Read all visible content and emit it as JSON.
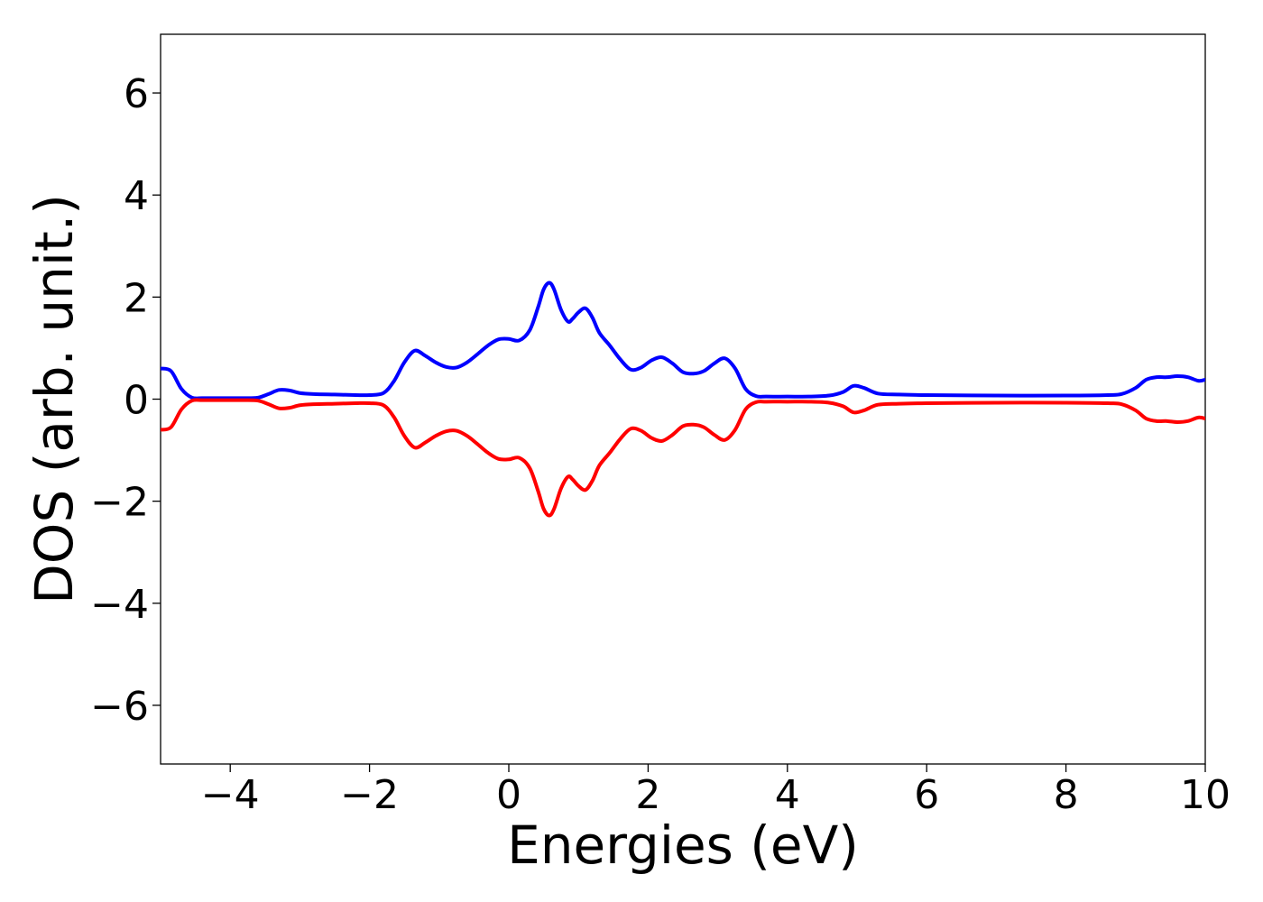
{
  "chart_data": {
    "type": "line",
    "title": "",
    "xlabel": "Energies (eV)",
    "ylabel": "DOS (arb. unit.)",
    "xlim": [
      -5,
      10
    ],
    "ylim": [
      -7.15,
      7.15
    ],
    "grid": false,
    "legend": "none",
    "x_ticks": [
      -4,
      -2,
      0,
      2,
      4,
      6,
      8,
      10
    ],
    "x_tick_labels": [
      "−4",
      "−2",
      "0",
      "2",
      "4",
      "6",
      "8",
      "10"
    ],
    "y_ticks": [
      6,
      4,
      2,
      0,
      -2,
      -4,
      -6
    ],
    "y_tick_labels": [
      "6",
      "4",
      "2",
      "0",
      "−2",
      "−4",
      "−6"
    ],
    "series": [
      {
        "color": "#0000ff",
        "x": [
          -5.0,
          -4.85,
          -4.7,
          -4.55,
          -4.4,
          -4.2,
          -4.0,
          -3.8,
          -3.6,
          -3.45,
          -3.3,
          -3.15,
          -3.0,
          -2.8,
          -2.5,
          -2.2,
          -2.0,
          -1.8,
          -1.65,
          -1.5,
          -1.35,
          -1.2,
          -1.05,
          -0.9,
          -0.75,
          -0.6,
          -0.45,
          -0.3,
          -0.15,
          0.0,
          0.15,
          0.3,
          0.42,
          0.5,
          0.58,
          0.65,
          0.75,
          0.85,
          0.92,
          1.0,
          1.1,
          1.2,
          1.3,
          1.45,
          1.6,
          1.75,
          1.9,
          2.05,
          2.2,
          2.35,
          2.5,
          2.65,
          2.8,
          2.95,
          3.1,
          3.25,
          3.4,
          3.55,
          3.7,
          4.0,
          4.3,
          4.6,
          4.8,
          4.95,
          5.1,
          5.3,
          5.6,
          6.0,
          7.0,
          8.0,
          8.6,
          8.8,
          9.0,
          9.15,
          9.3,
          9.45,
          9.6,
          9.75,
          9.9,
          10.0
        ],
        "y": [
          0.6,
          0.55,
          0.2,
          0.03,
          0.02,
          0.02,
          0.02,
          0.02,
          0.03,
          0.1,
          0.18,
          0.17,
          0.12,
          0.1,
          0.09,
          0.08,
          0.08,
          0.12,
          0.35,
          0.72,
          0.95,
          0.85,
          0.72,
          0.63,
          0.62,
          0.72,
          0.88,
          1.05,
          1.17,
          1.18,
          1.15,
          1.35,
          1.8,
          2.15,
          2.28,
          2.15,
          1.75,
          1.52,
          1.58,
          1.7,
          1.78,
          1.6,
          1.3,
          1.05,
          0.78,
          0.58,
          0.62,
          0.76,
          0.82,
          0.7,
          0.53,
          0.5,
          0.55,
          0.7,
          0.8,
          0.6,
          0.2,
          0.06,
          0.05,
          0.05,
          0.05,
          0.07,
          0.14,
          0.26,
          0.22,
          0.11,
          0.09,
          0.08,
          0.07,
          0.07,
          0.08,
          0.1,
          0.22,
          0.38,
          0.43,
          0.43,
          0.45,
          0.43,
          0.36,
          0.38
        ]
      },
      {
        "color": "#ff0000",
        "x": [
          -5.0,
          -4.85,
          -4.7,
          -4.55,
          -4.4,
          -4.2,
          -4.0,
          -3.8,
          -3.6,
          -3.45,
          -3.3,
          -3.15,
          -3.0,
          -2.8,
          -2.5,
          -2.2,
          -2.0,
          -1.8,
          -1.65,
          -1.5,
          -1.35,
          -1.2,
          -1.05,
          -0.9,
          -0.75,
          -0.6,
          -0.45,
          -0.3,
          -0.15,
          0.0,
          0.15,
          0.3,
          0.42,
          0.5,
          0.58,
          0.65,
          0.75,
          0.85,
          0.92,
          1.0,
          1.1,
          1.2,
          1.3,
          1.45,
          1.6,
          1.75,
          1.9,
          2.05,
          2.2,
          2.35,
          2.5,
          2.65,
          2.8,
          2.95,
          3.1,
          3.25,
          3.4,
          3.55,
          3.7,
          4.0,
          4.3,
          4.6,
          4.8,
          4.95,
          5.1,
          5.3,
          5.6,
          6.0,
          7.0,
          8.0,
          8.6,
          8.8,
          9.0,
          9.15,
          9.3,
          9.45,
          9.6,
          9.75,
          9.9,
          10.0
        ],
        "y": [
          -0.6,
          -0.55,
          -0.2,
          -0.03,
          -0.02,
          -0.02,
          -0.02,
          -0.02,
          -0.03,
          -0.1,
          -0.18,
          -0.17,
          -0.12,
          -0.1,
          -0.09,
          -0.08,
          -0.08,
          -0.12,
          -0.35,
          -0.72,
          -0.95,
          -0.85,
          -0.72,
          -0.63,
          -0.62,
          -0.72,
          -0.88,
          -1.05,
          -1.17,
          -1.18,
          -1.15,
          -1.35,
          -1.8,
          -2.15,
          -2.28,
          -2.15,
          -1.75,
          -1.52,
          -1.58,
          -1.7,
          -1.78,
          -1.6,
          -1.3,
          -1.05,
          -0.78,
          -0.58,
          -0.62,
          -0.76,
          -0.82,
          -0.7,
          -0.53,
          -0.5,
          -0.55,
          -0.7,
          -0.8,
          -0.6,
          -0.2,
          -0.06,
          -0.05,
          -0.05,
          -0.05,
          -0.07,
          -0.14,
          -0.26,
          -0.22,
          -0.11,
          -0.09,
          -0.08,
          -0.07,
          -0.07,
          -0.08,
          -0.1,
          -0.22,
          -0.38,
          -0.43,
          -0.43,
          -0.45,
          -0.43,
          -0.36,
          -0.38
        ]
      }
    ]
  }
}
